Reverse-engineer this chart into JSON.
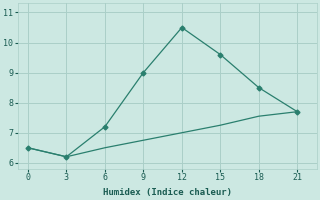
{
  "x": [
    0,
    3,
    6,
    9,
    12,
    15,
    18,
    21
  ],
  "y_curve": [
    6.5,
    6.2,
    7.2,
    9.0,
    10.5,
    9.6,
    8.5,
    7.7
  ],
  "y_line": [
    6.5,
    6.2,
    6.5,
    6.75,
    7.0,
    7.25,
    7.55,
    7.7
  ],
  "color": "#2a7f6e",
  "bg_color": "#cce8e2",
  "grid_color": "#aacfc8",
  "xlabel": "Humidex (Indice chaleur)",
  "ylim": [
    5.8,
    11.3
  ],
  "xlim": [
    -0.8,
    22.5
  ],
  "yticks": [
    6,
    7,
    8,
    9,
    10,
    11
  ],
  "xticks": [
    0,
    3,
    6,
    9,
    12,
    15,
    18,
    21
  ],
  "marker": "D",
  "markersize": 2.5,
  "linewidth": 0.9
}
